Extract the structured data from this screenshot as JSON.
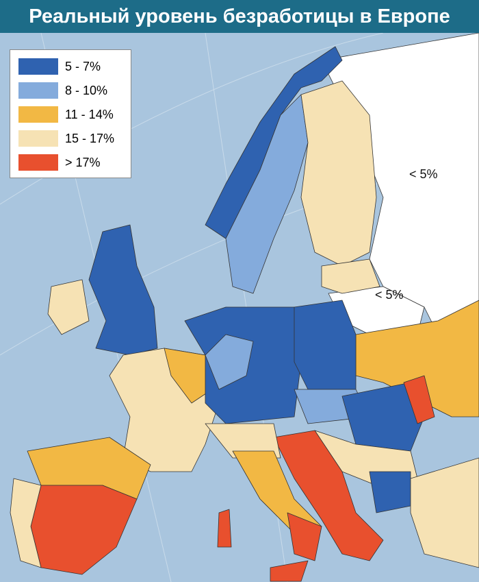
{
  "header": {
    "title": "Реальный уровень безработицы в Европе"
  },
  "legend": {
    "items": [
      {
        "label": "5 - 7%",
        "color": "#2f62b0"
      },
      {
        "label": "8 - 10%",
        "color": "#84abdc"
      },
      {
        "label": "11 - 14%",
        "color": "#f2b844"
      },
      {
        "label": "15 - 17%",
        "color": "#f6e2b4"
      },
      {
        "label": "> 17%",
        "color": "#e8502e"
      }
    ]
  },
  "map_labels": [
    "< 5%",
    "< 5%"
  ]
}
